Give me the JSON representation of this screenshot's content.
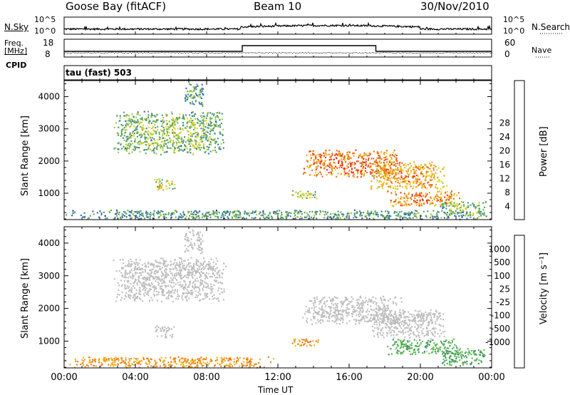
{
  "header": {
    "station": "Goose Bay (fitACF)",
    "beam": "Beam 10",
    "date": "30/Nov/2010"
  },
  "top_panels": {
    "nsky_label": "N.Sky",
    "nsky_ticks": [
      "10^5",
      "10^0"
    ],
    "nsearch_label": "N.Search",
    "nsearch_ticks": [
      "10^5",
      "10^0"
    ],
    "freq_label_1": "Freq.",
    "freq_label_2": "[MHz]",
    "freq_ticks": [
      "18",
      "8"
    ],
    "nave_label": "Nave",
    "nave_ticks": [
      "60",
      "0"
    ],
    "cpid_label": "CPID",
    "cpid_value": "tau (fast) 503"
  },
  "x_axis": {
    "label": "Time UT",
    "ticks": [
      "00:00",
      "04:00",
      "08:00",
      "12:00",
      "16:00",
      "20:00",
      "00:00"
    ]
  },
  "chart_data": [
    {
      "type": "heatmap",
      "ylabel": "Slant Range [km]",
      "xlabel": "Time UT",
      "xlim": [
        0,
        24
      ],
      "ylim": [
        180,
        4500
      ],
      "y_ticks": [
        1000,
        2000,
        3000,
        4000
      ],
      "colorbar_label": "Power [dB]",
      "colorbar_ticks": [
        "4",
        "8",
        "12",
        "16",
        "20",
        "24",
        "28"
      ],
      "colorbar_colors": [
        "#1a1aee",
        "#2f5fb8",
        "#3f8f8a",
        "#5aa55a",
        "#a8c832",
        "#e8d21e",
        "#f0a81c",
        "#ee6e18",
        "#e63a18",
        "#dd1a1a"
      ],
      "echo_regions": [
        {
          "t0": 2.6,
          "t1": 9.2,
          "r0": 2200,
          "r1": 3600,
          "level": 0.45
        },
        {
          "t0": 5.0,
          "t1": 6.2,
          "r0": 1100,
          "r1": 1500,
          "level": 0.55
        },
        {
          "t0": 6.7,
          "t1": 7.8,
          "r0": 3700,
          "r1": 4450,
          "level": 0.35
        },
        {
          "t0": 0.0,
          "t1": 23.9,
          "r0": 200,
          "r1": 500,
          "level": 0.35
        },
        {
          "t0": 13.3,
          "t1": 19.0,
          "r0": 1500,
          "r1": 2400,
          "level": 0.85
        },
        {
          "t0": 17.0,
          "t1": 21.5,
          "r0": 1100,
          "r1": 2000,
          "level": 0.75
        },
        {
          "t0": 18.0,
          "t1": 22.3,
          "r0": 600,
          "r1": 1100,
          "level": 0.8
        },
        {
          "t0": 12.7,
          "t1": 14.3,
          "r0": 850,
          "r1": 1100,
          "level": 0.5
        },
        {
          "t0": 21.0,
          "t1": 23.8,
          "r0": 250,
          "r1": 800,
          "level": 0.45
        }
      ]
    },
    {
      "type": "heatmap",
      "ylabel": "Slant Range [km]",
      "xlabel": "Time UT",
      "xlim": [
        0,
        24
      ],
      "ylim": [
        180,
        4500
      ],
      "y_ticks": [
        1000,
        2000,
        3000,
        4000
      ],
      "colorbar_label": "Velocity [m s⁻¹]",
      "colorbar_ticks": [
        "1000",
        "500",
        "100",
        "25",
        "-25",
        "-100",
        "-500",
        "-1000"
      ],
      "colorbar_colors": [
        "#1a2ad8",
        "#2f62b0",
        "#3f8a6e",
        "#55b84a",
        "#bdbdbd",
        "#bdbdbd",
        "#f0b01c",
        "#ee7a18",
        "#e83c18",
        "#dd1a1a"
      ],
      "echo_regions": [
        {
          "t0": 2.6,
          "t1": 9.2,
          "r0": 2200,
          "r1": 3600,
          "level": 0.5
        },
        {
          "t0": 5.0,
          "t1": 6.2,
          "r0": 1100,
          "r1": 1500,
          "level": 0.5
        },
        {
          "t0": 6.7,
          "t1": 7.8,
          "r0": 3700,
          "r1": 4450,
          "level": 0.5
        },
        {
          "t0": 0.0,
          "t1": 12.0,
          "r0": 200,
          "r1": 550,
          "level": 0.72
        },
        {
          "t0": 13.3,
          "t1": 19.0,
          "r0": 1500,
          "r1": 2400,
          "level": 0.5
        },
        {
          "t0": 17.0,
          "t1": 21.5,
          "r0": 1100,
          "r1": 2000,
          "level": 0.5
        },
        {
          "t0": 18.0,
          "t1": 22.3,
          "r0": 600,
          "r1": 1100,
          "level": 0.32
        },
        {
          "t0": 12.7,
          "t1": 14.3,
          "r0": 850,
          "r1": 1100,
          "level": 0.7
        },
        {
          "t0": 21.0,
          "t1": 23.8,
          "r0": 250,
          "r1": 800,
          "level": 0.3
        }
      ]
    }
  ]
}
